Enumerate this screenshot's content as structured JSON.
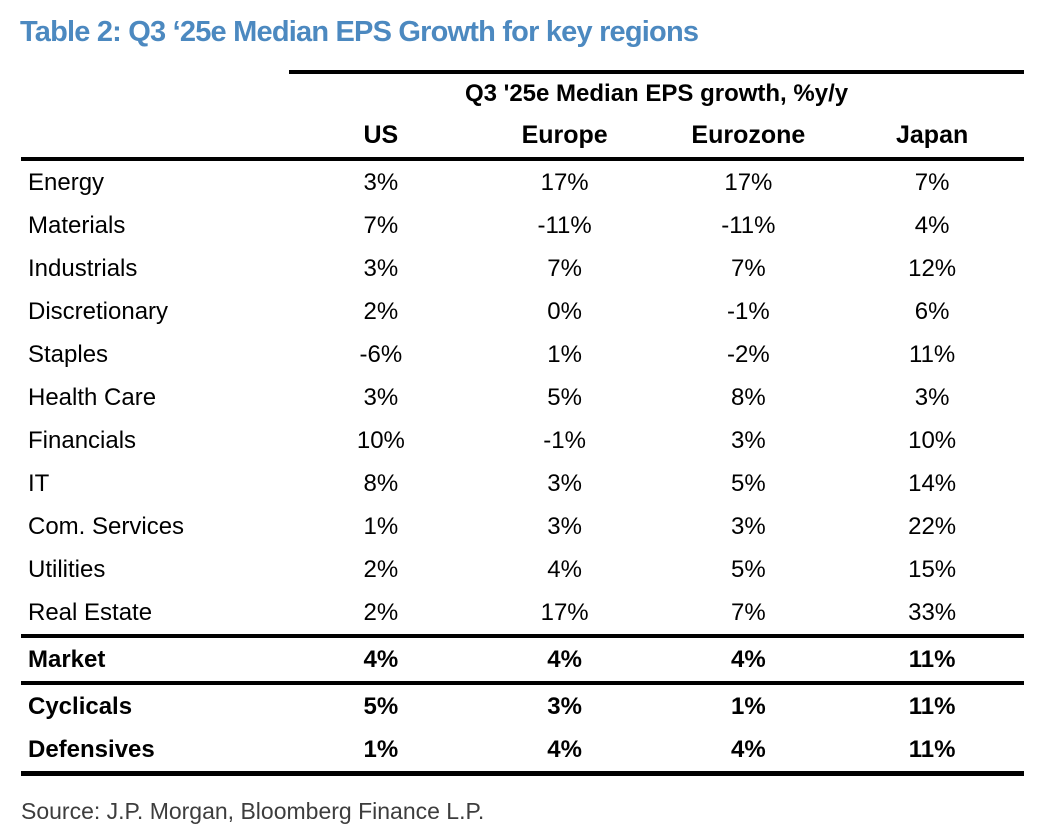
{
  "page": {
    "title": "Table 2: Q3 ‘25e Median EPS Growth for key regions",
    "source": "Source: J.P. Morgan, Bloomberg Finance L.P.",
    "accent_color": "#4C89C0",
    "rule_color": "#000000"
  },
  "chart_data": {
    "type": "table",
    "title": "Q3 '25e Median EPS growth, %y/y",
    "columns": [
      "US",
      "Europe",
      "Eurozone",
      "Japan"
    ],
    "rows": [
      {
        "label": "Energy",
        "values": [
          "3%",
          "17%",
          "17%",
          "7%"
        ],
        "bold": false,
        "rule_above": false
      },
      {
        "label": "Materials",
        "values": [
          "7%",
          "-11%",
          "-11%",
          "4%"
        ],
        "bold": false,
        "rule_above": false
      },
      {
        "label": "Industrials",
        "values": [
          "3%",
          "7%",
          "7%",
          "12%"
        ],
        "bold": false,
        "rule_above": false
      },
      {
        "label": "Discretionary",
        "values": [
          "2%",
          "0%",
          "-1%",
          "6%"
        ],
        "bold": false,
        "rule_above": false
      },
      {
        "label": "Staples",
        "values": [
          "-6%",
          "1%",
          "-2%",
          "11%"
        ],
        "bold": false,
        "rule_above": false
      },
      {
        "label": "Health Care",
        "values": [
          "3%",
          "5%",
          "8%",
          "3%"
        ],
        "bold": false,
        "rule_above": false
      },
      {
        "label": "Financials",
        "values": [
          "10%",
          "-1%",
          "3%",
          "10%"
        ],
        "bold": false,
        "rule_above": false
      },
      {
        "label": "IT",
        "values": [
          "8%",
          "3%",
          "5%",
          "14%"
        ],
        "bold": false,
        "rule_above": false
      },
      {
        "label": "Com. Services",
        "values": [
          "1%",
          "3%",
          "3%",
          "22%"
        ],
        "bold": false,
        "rule_above": false
      },
      {
        "label": "Utilities",
        "values": [
          "2%",
          "4%",
          "5%",
          "15%"
        ],
        "bold": false,
        "rule_above": false
      },
      {
        "label": "Real Estate",
        "values": [
          "2%",
          "17%",
          "7%",
          "33%"
        ],
        "bold": false,
        "rule_above": false
      },
      {
        "label": "Market",
        "values": [
          "4%",
          "4%",
          "4%",
          "11%"
        ],
        "bold": true,
        "rule_above": true
      },
      {
        "label": "Cyclicals",
        "values": [
          "5%",
          "3%",
          "1%",
          "11%"
        ],
        "bold": true,
        "rule_above": true
      },
      {
        "label": "Defensives",
        "values": [
          "1%",
          "4%",
          "4%",
          "11%"
        ],
        "bold": true,
        "rule_above": false
      }
    ]
  }
}
